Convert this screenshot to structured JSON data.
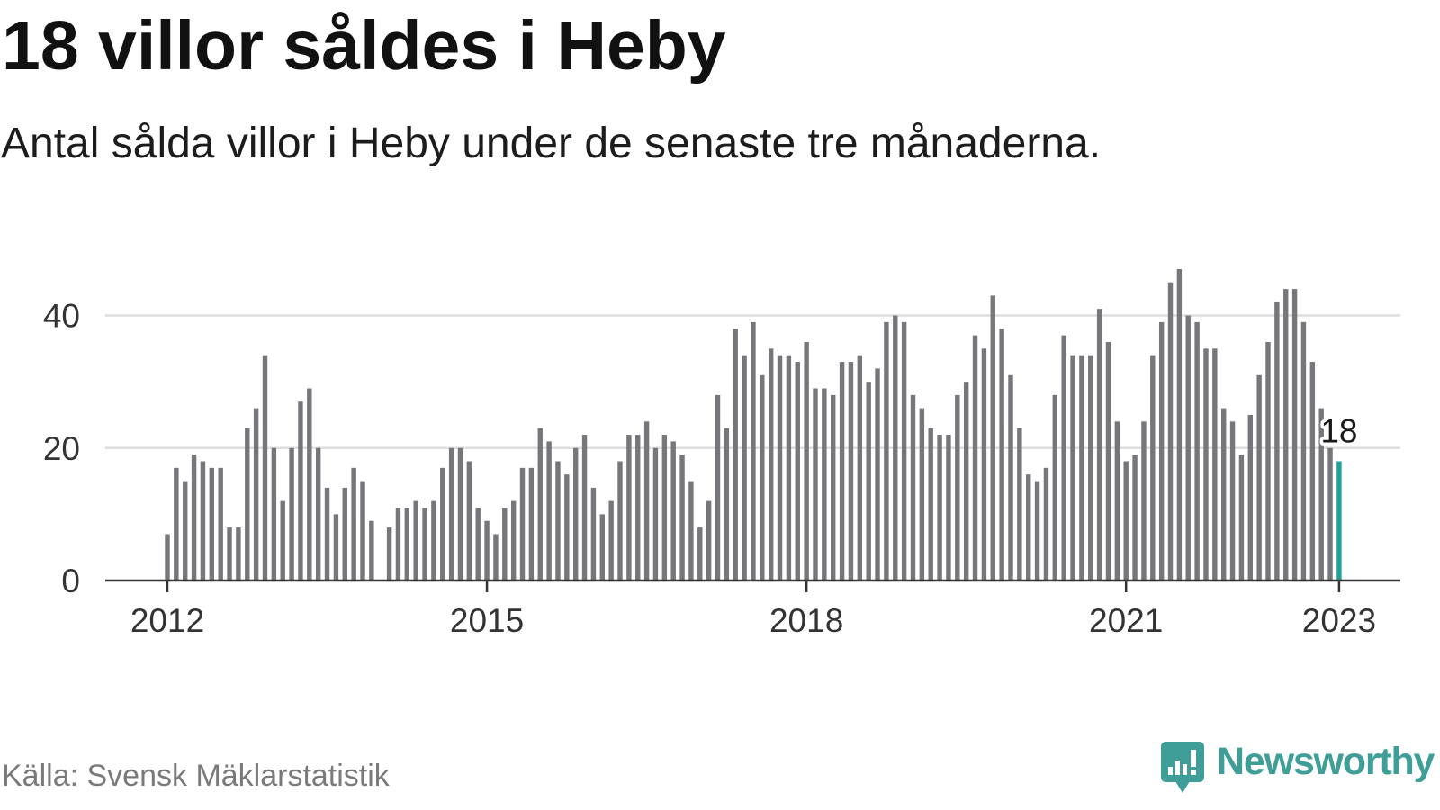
{
  "chart_data": {
    "type": "bar",
    "title": "18 villor såldes i Heby",
    "subtitle": "Antal sålda villor i Heby under de senaste tre månaderna.",
    "x": [
      "2012-01",
      "2012-02",
      "2012-03",
      "2012-04",
      "2012-05",
      "2012-06",
      "2012-07",
      "2012-08",
      "2012-09",
      "2012-10",
      "2012-11",
      "2012-12",
      "2013-01",
      "2013-02",
      "2013-03",
      "2013-04",
      "2013-05",
      "2013-06",
      "2013-07",
      "2013-08",
      "2013-09",
      "2013-10",
      "2013-11",
      "2013-12",
      "2014-01",
      "2014-02",
      "2014-03",
      "2014-04",
      "2014-05",
      "2014-06",
      "2014-07",
      "2014-08",
      "2014-09",
      "2014-10",
      "2014-11",
      "2014-12",
      "2015-01",
      "2015-02",
      "2015-03",
      "2015-04",
      "2015-05",
      "2015-06",
      "2015-07",
      "2015-08",
      "2015-09",
      "2015-10",
      "2015-11",
      "2015-12",
      "2016-01",
      "2016-02",
      "2016-03",
      "2016-04",
      "2016-05",
      "2016-06",
      "2016-07",
      "2016-08",
      "2016-09",
      "2016-10",
      "2016-11",
      "2016-12",
      "2017-01",
      "2017-02",
      "2017-03",
      "2017-04",
      "2017-05",
      "2017-06",
      "2017-07",
      "2017-08",
      "2017-09",
      "2017-10",
      "2017-11",
      "2017-12",
      "2018-01",
      "2018-02",
      "2018-03",
      "2018-04",
      "2018-05",
      "2018-06",
      "2018-07",
      "2018-08",
      "2018-09",
      "2018-10",
      "2018-11",
      "2018-12",
      "2019-01",
      "2019-02",
      "2019-03",
      "2019-04",
      "2019-05",
      "2019-06",
      "2019-07",
      "2019-08",
      "2019-09",
      "2019-10",
      "2019-11",
      "2019-12",
      "2020-01",
      "2020-02",
      "2020-03",
      "2020-04",
      "2020-05",
      "2020-06",
      "2020-07",
      "2020-08",
      "2020-09",
      "2020-10",
      "2020-11",
      "2020-12",
      "2021-01",
      "2021-02",
      "2021-03",
      "2021-04",
      "2021-05",
      "2021-06",
      "2021-07",
      "2021-08",
      "2021-09",
      "2021-10",
      "2021-11",
      "2021-12",
      "2022-01",
      "2022-02",
      "2022-03",
      "2022-04",
      "2022-05",
      "2022-06",
      "2022-07",
      "2022-08",
      "2022-09",
      "2022-10",
      "2022-11",
      "2022-12",
      "2023-01"
    ],
    "values": [
      7,
      17,
      15,
      19,
      18,
      17,
      17,
      8,
      8,
      23,
      26,
      34,
      20,
      12,
      20,
      27,
      29,
      20,
      14,
      10,
      14,
      17,
      15,
      9,
      null,
      8,
      11,
      11,
      12,
      11,
      12,
      17,
      20,
      20,
      18,
      11,
      9,
      7,
      11,
      12,
      17,
      17,
      23,
      21,
      18,
      16,
      20,
      22,
      14,
      10,
      12,
      18,
      22,
      22,
      24,
      20,
      22,
      21,
      19,
      15,
      8,
      12,
      28,
      23,
      38,
      34,
      39,
      31,
      35,
      34,
      34,
      33,
      36,
      29,
      29,
      28,
      33,
      33,
      34,
      30,
      32,
      39,
      40,
      39,
      28,
      26,
      23,
      22,
      22,
      28,
      30,
      37,
      35,
      43,
      38,
      31,
      23,
      16,
      15,
      17,
      28,
      37,
      34,
      34,
      34,
      41,
      36,
      24,
      18,
      19,
      24,
      34,
      39,
      45,
      47,
      40,
      39,
      35,
      35,
      26,
      24,
      19,
      25,
      31,
      36,
      42,
      44,
      44,
      39,
      33,
      26,
      20,
      18
    ],
    "xticks": [
      "2012",
      "2015",
      "2018",
      "2021",
      "2023"
    ],
    "yticks": [
      0,
      20,
      40
    ],
    "ylim": [
      0,
      47
    ],
    "grid": true,
    "highlight": {
      "x": "2023-01",
      "label": "18"
    }
  },
  "footer": {
    "source": "Källa: Svensk Mäklarstatistik",
    "brand": "Newsworthy"
  },
  "colors": {
    "bars": "#76767b",
    "highlight": "#1fa394",
    "brand": "#3f9f98",
    "grid": "#dedede",
    "axis": "#333333"
  }
}
